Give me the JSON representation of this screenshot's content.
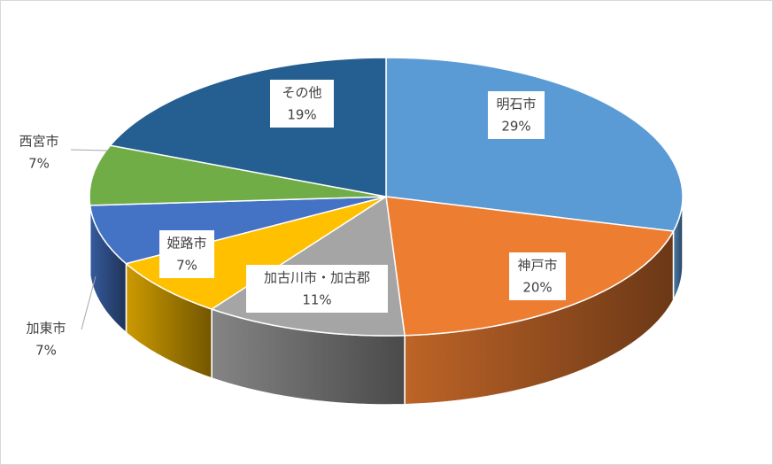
{
  "chart_data": {
    "type": "pie3d",
    "categories": [
      "明石市",
      "神戸市",
      "加古川市・加古郡",
      "姫路市",
      "加東市",
      "西宮市",
      "その他"
    ],
    "values": [
      29,
      20,
      11,
      7,
      7,
      7,
      19
    ],
    "value_labels": [
      "29%",
      "20%",
      "11%",
      "7%",
      "7%",
      "7%",
      "19%"
    ],
    "colors": [
      "#5b9bd5",
      "#ed7d31",
      "#a5a5a5",
      "#ffc000",
      "#4472c4",
      "#70ad47",
      "#255e91"
    ]
  }
}
